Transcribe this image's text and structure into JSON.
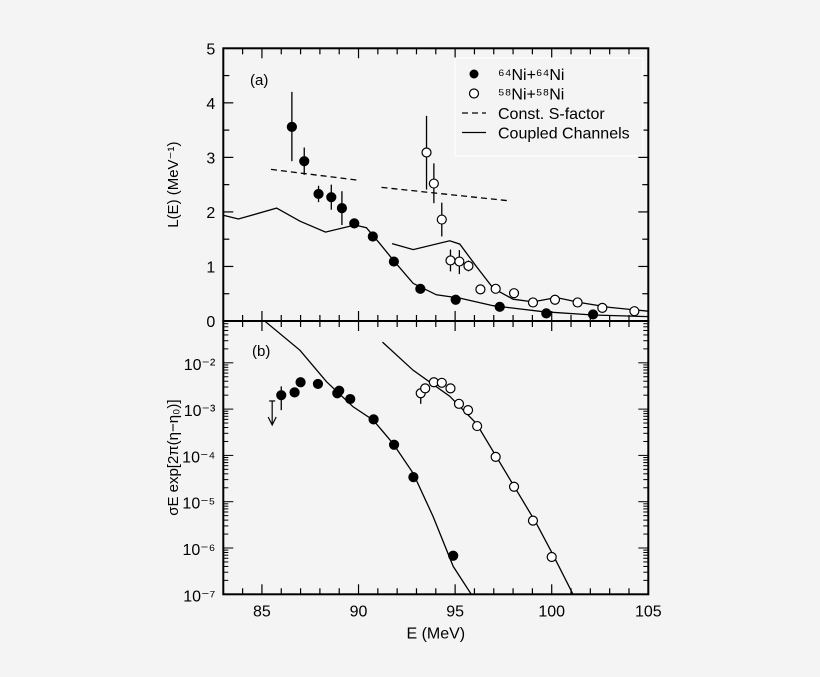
{
  "chart_data": [
    {
      "panel_label": "(a)",
      "type": "scatter",
      "xlabel": "",
      "ylabel": "L(E) (MeV⁻¹)",
      "xlim": [
        83,
        105
      ],
      "ylim": [
        0,
        5
      ],
      "yticks": [
        0,
        1,
        2,
        3,
        4,
        5
      ],
      "yscale": "linear",
      "legend": {
        "placement": "top-right",
        "entries": [
          {
            "label": "⁶⁴Ni+⁶⁴Ni",
            "marker": "filled-circle"
          },
          {
            "label": "⁵⁸Ni+⁵⁸Ni",
            "marker": "open-circle"
          },
          {
            "label": "Const. S-factor",
            "marker": "dashed-line"
          },
          {
            "label": "Coupled Channels",
            "marker": "solid-line"
          }
        ]
      },
      "series": [
        {
          "name": "⁶⁴Ni+⁶⁴Ni",
          "marker": "filled",
          "points": [
            {
              "x": 86.55,
              "y": 3.56,
              "lo": 2.93,
              "hi": 4.2
            },
            {
              "x": 87.19,
              "y": 2.93,
              "lo": 2.68,
              "hi": 3.18
            },
            {
              "x": 87.93,
              "y": 2.33,
              "lo": 2.18,
              "hi": 2.48
            },
            {
              "x": 88.59,
              "y": 2.27,
              "lo": 2.04,
              "hi": 2.5
            },
            {
              "x": 89.14,
              "y": 2.07,
              "lo": 1.76,
              "hi": 2.38
            },
            {
              "x": 89.78,
              "y": 1.79,
              "lo": 1.71,
              "hi": 1.87
            },
            {
              "x": 90.74,
              "y": 1.55
            },
            {
              "x": 91.83,
              "y": 1.09
            },
            {
              "x": 93.2,
              "y": 0.59
            },
            {
              "x": 95.03,
              "y": 0.39
            },
            {
              "x": 97.31,
              "y": 0.26
            },
            {
              "x": 99.72,
              "y": 0.14
            },
            {
              "x": 102.14,
              "y": 0.12
            }
          ]
        },
        {
          "name": "⁵⁸Ni+⁵⁸Ni",
          "marker": "open",
          "points": [
            {
              "x": 93.52,
              "y": 3.09,
              "lo": 2.41,
              "hi": 3.76
            },
            {
              "x": 93.9,
              "y": 2.52,
              "lo": 2.16,
              "hi": 2.89
            },
            {
              "x": 94.31,
              "y": 1.86,
              "lo": 1.55,
              "hi": 2.17
            },
            {
              "x": 94.76,
              "y": 1.11,
              "lo": 0.91,
              "hi": 1.31
            },
            {
              "x": 95.22,
              "y": 1.09,
              "lo": 0.86,
              "hi": 1.3
            },
            {
              "x": 95.69,
              "y": 1.01,
              "lo": 0.91,
              "hi": 1.11
            },
            {
              "x": 96.31,
              "y": 0.58,
              "lo": 0.51,
              "hi": 0.65
            },
            {
              "x": 97.1,
              "y": 0.59
            },
            {
              "x": 98.05,
              "y": 0.51
            },
            {
              "x": 99.03,
              "y": 0.34
            },
            {
              "x": 100.17,
              "y": 0.39
            },
            {
              "x": 101.34,
              "y": 0.34
            },
            {
              "x": 102.62,
              "y": 0.24
            },
            {
              "x": 104.28,
              "y": 0.18
            }
          ]
        }
      ],
      "lines": [
        {
          "name": "Const. S-factor",
          "style": "dashed",
          "points": [
            [
              85.47,
              2.78
            ],
            [
              90.02,
              2.58
            ]
          ]
        },
        {
          "name": "Const. S-factor",
          "style": "dashed",
          "points": [
            [
              91.19,
              2.45
            ],
            [
              97.88,
              2.2
            ]
          ]
        },
        {
          "name": "Coupled Channels",
          "style": "solid",
          "points": [
            [
              83,
              1.94
            ],
            [
              83.78,
              1.87
            ],
            [
              85.76,
              2.07
            ],
            [
              86.97,
              1.83
            ],
            [
              88.29,
              1.63
            ],
            [
              89.81,
              1.76
            ],
            [
              90.41,
              1.71
            ],
            [
              91.1,
              1.42
            ],
            [
              91.79,
              1.12
            ],
            [
              92.83,
              0.69
            ],
            [
              94.03,
              0.48
            ],
            [
              95.24,
              0.42
            ],
            [
              96.97,
              0.28
            ],
            [
              99.55,
              0.17
            ],
            [
              102.14,
              0.11
            ],
            [
              105,
              0.08
            ]
          ]
        },
        {
          "name": "Coupled Channels",
          "style": "solid",
          "points": [
            [
              91.74,
              1.42
            ],
            [
              92.83,
              1.31
            ],
            [
              94.72,
              1.47
            ],
            [
              95.24,
              1.41
            ],
            [
              96.1,
              1.0
            ],
            [
              96.97,
              0.6
            ],
            [
              98.0,
              0.4
            ],
            [
              99.03,
              0.35
            ],
            [
              100.24,
              0.43
            ],
            [
              101.45,
              0.34
            ],
            [
              103,
              0.25
            ],
            [
              105,
              0.18
            ]
          ]
        }
      ]
    },
    {
      "panel_label": "(b)",
      "type": "scatter",
      "xlabel": "E (MeV)",
      "ylabel": "σE exp[2π(η−η₀)]",
      "xlim": [
        83,
        105
      ],
      "xticks": [
        85,
        90,
        95,
        100,
        105
      ],
      "ylim": [
        1e-07,
        0.08
      ],
      "yscale": "log",
      "yticks": [
        {
          "value": 0.01,
          "label": "10⁻²"
        },
        {
          "value": 0.001,
          "label": "10⁻³"
        },
        {
          "value": 0.0001,
          "label": "10⁻⁴"
        },
        {
          "value": 1e-05,
          "label": "10⁻⁵"
        },
        {
          "value": 1e-06,
          "label": "10⁻⁶"
        },
        {
          "value": 1e-07,
          "label": "10⁻⁷"
        }
      ],
      "series": [
        {
          "name": "⁶⁴Ni+⁶⁴Ni",
          "marker": "filled",
          "points": [
            {
              "x": 86.0,
              "y": 0.002,
              "lo": 0.00095,
              "hi": 0.0031
            },
            {
              "x": 86.69,
              "y": 0.0023
            },
            {
              "x": 87.0,
              "y": 0.0038
            },
            {
              "x": 87.9,
              "y": 0.0035
            },
            {
              "x": 88.9,
              "y": 0.0022
            },
            {
              "x": 89.0,
              "y": 0.0025
            },
            {
              "x": 89.57,
              "y": 0.00165
            },
            {
              "x": 90.78,
              "y": 0.0006
            },
            {
              "x": 91.84,
              "y": 0.00017
            },
            {
              "x": 92.84,
              "y": 3.4e-05
            },
            {
              "x": 94.9,
              "y": 6.8e-07
            }
          ],
          "upper_limits": [
            {
              "x": 85.53,
              "y": 0.0015
            }
          ]
        },
        {
          "name": "⁵⁸Ni+⁵⁸Ni",
          "marker": "open",
          "points": [
            {
              "x": 93.22,
              "y": 0.0022,
              "lo": 0.0013,
              "hi": 0.0022
            },
            {
              "x": 93.45,
              "y": 0.0028
            },
            {
              "x": 93.9,
              "y": 0.0038
            },
            {
              "x": 94.31,
              "y": 0.0037
            },
            {
              "x": 94.76,
              "y": 0.0028
            },
            {
              "x": 95.2,
              "y": 0.0013
            },
            {
              "x": 95.67,
              "y": 0.00095
            },
            {
              "x": 96.14,
              "y": 0.00043
            },
            {
              "x": 97.1,
              "y": 9.3e-05
            },
            {
              "x": 98.05,
              "y": 2.1e-05
            },
            {
              "x": 99.03,
              "y": 3.9e-06
            },
            {
              "x": 100.0,
              "y": 6.4e-07
            }
          ]
        }
      ],
      "lines": [
        {
          "name": "Coupled Channels",
          "style": "solid",
          "points": [
            [
              85.16,
              0.079
            ],
            [
              86.97,
              0.0186
            ],
            [
              88.34,
              0.0039
            ],
            [
              89.72,
              0.00112
            ],
            [
              90.76,
              0.00058
            ],
            [
              91.79,
              0.00018
            ],
            [
              92.83,
              4.1e-05
            ],
            [
              93.86,
              4.8e-06
            ],
            [
              94.9,
              4e-07
            ],
            [
              95.84,
              1e-07
            ]
          ]
        },
        {
          "name": "Coupled Channels",
          "style": "solid",
          "points": [
            [
              91.24,
              0.028
            ],
            [
              92.83,
              0.0069
            ],
            [
              94.72,
              0.0019
            ],
            [
              96.1,
              0.00049
            ],
            [
              97.14,
              9.3e-05
            ],
            [
              98.17,
              1.78e-05
            ],
            [
              99.21,
              3.4e-06
            ],
            [
              100.07,
              7.1e-07
            ],
            [
              101.1,
              1e-07
            ]
          ]
        }
      ]
    }
  ]
}
